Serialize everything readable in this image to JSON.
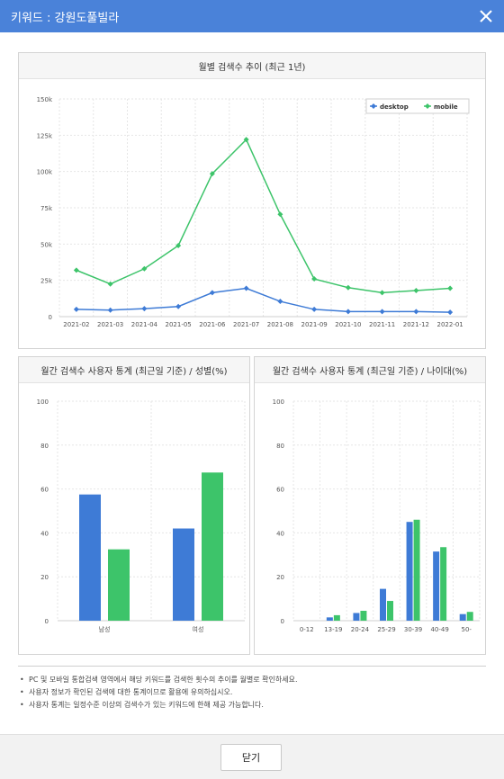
{
  "dialog": {
    "title": "키워드 : 강원도풀빌라",
    "close_button": "닫기"
  },
  "monthly_chart": {
    "title": "월별 검색수 추이 (최근 1년)",
    "chart_data": {
      "type": "line",
      "x": [
        "2021-02",
        "2021-03",
        "2021-04",
        "2021-05",
        "2021-06",
        "2021-07",
        "2021-08",
        "2021-09",
        "2021-10",
        "2021-11",
        "2021-12",
        "2022-01"
      ],
      "y_ticks": [
        "0",
        "25k",
        "50k",
        "75k",
        "100k",
        "125k",
        "150k"
      ],
      "ylim": [
        0,
        150000
      ],
      "legend_position": "top-right",
      "grid": true,
      "series": [
        {
          "name": "desktop",
          "color": "#3e7bd6",
          "values": [
            5000,
            4500,
            5500,
            7000,
            16500,
            19500,
            10500,
            5000,
            3500,
            3500,
            3500,
            3000
          ]
        },
        {
          "name": "mobile",
          "color": "#3dc46a",
          "values": [
            32000,
            22500,
            33000,
            49000,
            98500,
            122000,
            70500,
            26000,
            20000,
            16500,
            18000,
            19500
          ]
        }
      ]
    }
  },
  "gender_chart": {
    "title": "월간 검색수 사용자 통계 (최근일 기준) / 성별(%)",
    "chart_data": {
      "type": "bar",
      "categories": [
        "남성",
        "여성"
      ],
      "y_ticks": [
        "0",
        "20",
        "40",
        "60",
        "80",
        "100"
      ],
      "ylim": [
        0,
        100
      ],
      "grid": true,
      "series": [
        {
          "color": "#3e7bd6",
          "values": [
            57.5,
            42
          ]
        },
        {
          "color": "#3dc46a",
          "values": [
            32.5,
            67.5
          ]
        }
      ]
    }
  },
  "age_chart": {
    "title": "월간 검색수 사용자 통계 (최근일 기준) / 나이대(%)",
    "chart_data": {
      "type": "bar",
      "categories": [
        "0-12",
        "13-19",
        "20-24",
        "25-29",
        "30-39",
        "40-49",
        "50-"
      ],
      "y_ticks": [
        "0",
        "20",
        "40",
        "60",
        "80",
        "100"
      ],
      "ylim": [
        0,
        100
      ],
      "grid": true,
      "series": [
        {
          "color": "#3e7bd6",
          "values": [
            0,
            1.5,
            3.5,
            14.5,
            45,
            31.5,
            3
          ]
        },
        {
          "color": "#3dc46a",
          "values": [
            0,
            2.5,
            4.5,
            9,
            46,
            33.5,
            4
          ]
        }
      ]
    }
  },
  "notes": [
    "PC 및 모바일 통합검색 영역에서 해당 키워드를 검색한 횟수의 추이를 월별로 확인하세요.",
    "사용자 정보가 확인된 검색에 대한 통계이므로 활용에 유의하십시오.",
    "사용자 통계는 일정수준 이상의 검색수가 있는 키워드에 한해 제공 가능합니다."
  ]
}
